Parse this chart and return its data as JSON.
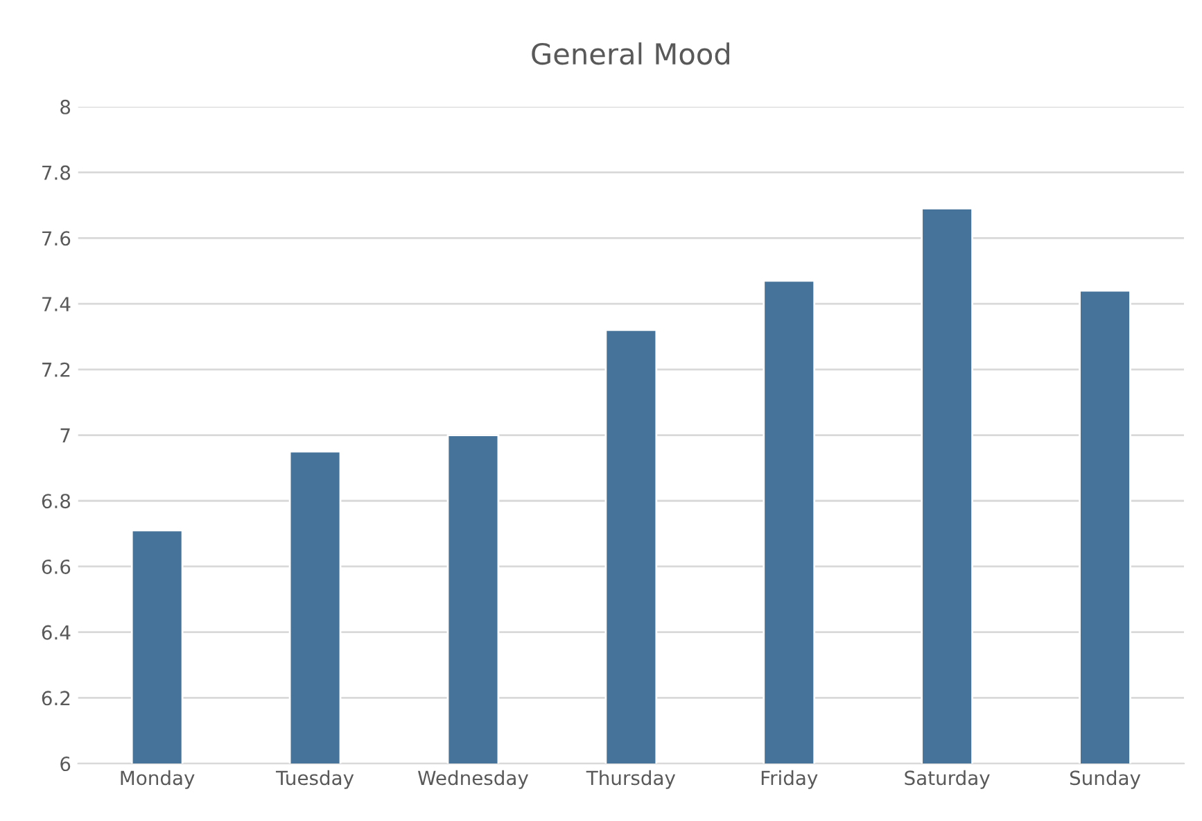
{
  "chart_data": {
    "type": "bar",
    "title": "General Mood",
    "categories": [
      "Monday",
      "Tuesday",
      "Wednesday",
      "Thursday",
      "Friday",
      "Saturday",
      "Sunday"
    ],
    "values": [
      6.71,
      6.95,
      7.0,
      7.32,
      7.47,
      7.69,
      7.44
    ],
    "color": "#46739a",
    "ylim": [
      6,
      8
    ],
    "yticks": [
      6,
      6.2,
      6.4,
      6.6,
      6.8,
      7,
      7.2,
      7.4,
      7.6,
      7.8,
      8
    ],
    "grid": "y",
    "legend": false
  }
}
